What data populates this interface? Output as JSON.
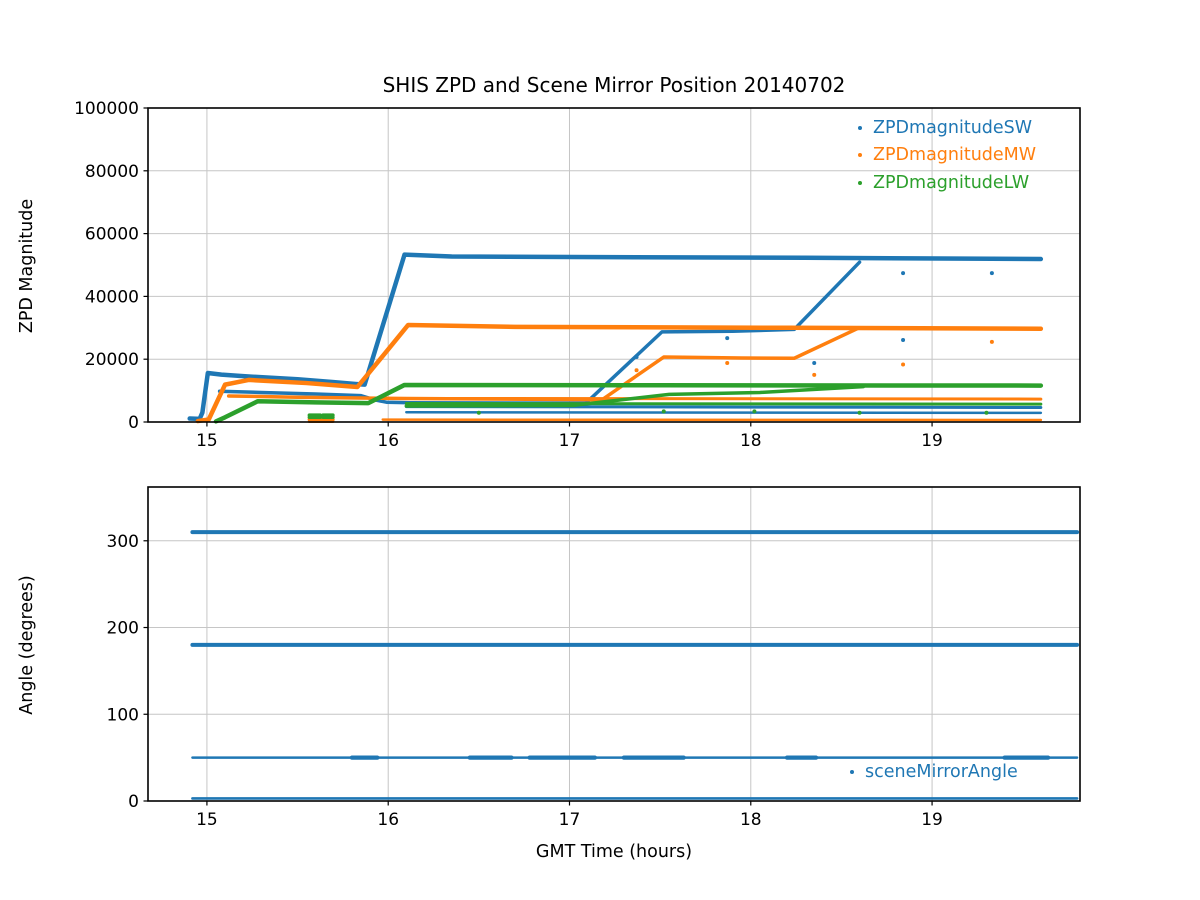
{
  "page": {
    "title": "SHIS ZPD and Scene Mirror Position 20140702"
  },
  "colors": {
    "blue": "#1f77b4",
    "orange": "#ff7f0e",
    "green": "#2ca02c",
    "grid": "#c6c6c6",
    "axis": "#000000"
  },
  "chart_data": [
    {
      "type": "scatter",
      "title": "SHIS ZPD and Scene Mirror Position 20140702",
      "ylabel": "ZPD Magnitude",
      "xlim": [
        14.675,
        19.816
      ],
      "ylim": [
        0,
        100000
      ],
      "grid": true,
      "xticks": [
        {
          "v": 15,
          "label": "15"
        },
        {
          "v": 16,
          "label": "16"
        },
        {
          "v": 17,
          "label": "17"
        },
        {
          "v": 18,
          "label": "18"
        },
        {
          "v": 19,
          "label": "19"
        }
      ],
      "yticks": [
        {
          "v": 0,
          "label": "0"
        },
        {
          "v": 20000,
          "label": "20000"
        },
        {
          "v": 40000,
          "label": "40000"
        },
        {
          "v": 60000,
          "label": "60000"
        },
        {
          "v": 80000,
          "label": "80000"
        },
        {
          "v": 100000,
          "label": "100000"
        }
      ],
      "legend": {
        "position": "upper right",
        "entries": [
          {
            "label": "ZPDmagnitudeSW",
            "color": "#1f77b4"
          },
          {
            "label": "ZPDmagnitudeMW",
            "color": "#ff7f0e"
          },
          {
            "label": "ZPDmagnitudeLW",
            "color": "#2ca02c"
          }
        ]
      },
      "series": [
        {
          "name": "ZPDmagnitudeSW",
          "part": "main",
          "color": "#1f77b4",
          "width": 4.5,
          "points": [
            [
              14.905,
              1100
            ],
            [
              14.96,
              1000
            ],
            [
              14.975,
              3000
            ],
            [
              15.005,
              15600
            ],
            [
              15.08,
              15100
            ],
            [
              15.2,
              14600
            ],
            [
              15.5,
              13600
            ],
            [
              15.7,
              12700
            ],
            [
              15.82,
              12100
            ],
            [
              15.87,
              11900
            ],
            [
              16.09,
              53300
            ],
            [
              16.35,
              52700
            ],
            [
              17.2,
              52500
            ],
            [
              18.3,
              52300
            ],
            [
              19.6,
              51900
            ]
          ]
        },
        {
          "name": "ZPDmagnitudeSW",
          "part": "strand2",
          "color": "#1f77b4",
          "width": 3.5,
          "points": [
            [
              15.07,
              9800
            ],
            [
              15.3,
              9400
            ],
            [
              15.6,
              8900
            ],
            [
              15.85,
              8400
            ],
            [
              15.93,
              7000
            ],
            [
              15.99,
              6300
            ],
            [
              16.12,
              6150
            ],
            [
              17.09,
              6000
            ],
            [
              17.51,
              28700
            ],
            [
              17.9,
              28900
            ],
            [
              18.24,
              29500
            ],
            [
              18.6,
              50900
            ]
          ]
        },
        {
          "name": "ZPDmagnitudeSW",
          "part": "strand3",
          "color": "#1f77b4",
          "width": 3,
          "points": [
            [
              16.1,
              4900
            ],
            [
              18.0,
              4750
            ],
            [
              19.6,
              4600
            ]
          ]
        },
        {
          "name": "ZPDmagnitudeSW",
          "part": "strand4",
          "color": "#1f77b4",
          "width": 2.5,
          "points": [
            [
              16.1,
              3100
            ],
            [
              19.6,
              2900
            ]
          ]
        },
        {
          "name": "ZPDmagnitudeMW",
          "part": "main",
          "color": "#ff7f0e",
          "width": 4.5,
          "points": [
            [
              14.95,
              300
            ],
            [
              15.01,
              800
            ],
            [
              15.1,
              11900
            ],
            [
              15.23,
              13400
            ],
            [
              15.55,
              12400
            ],
            [
              15.83,
              11150
            ],
            [
              16.11,
              30900
            ],
            [
              16.7,
              30300
            ],
            [
              18.2,
              30000
            ],
            [
              19.6,
              29700
            ]
          ]
        },
        {
          "name": "ZPDmagnitudeMW",
          "part": "strand2",
          "color": "#ff7f0e",
          "width": 3.5,
          "points": [
            [
              15.12,
              8300
            ],
            [
              15.5,
              7900
            ],
            [
              15.9,
              7600
            ],
            [
              16.1,
              7500
            ],
            [
              17.18,
              7100
            ],
            [
              17.52,
              20700
            ],
            [
              17.95,
              20400
            ],
            [
              18.24,
              20300
            ],
            [
              18.59,
              29800
            ]
          ]
        },
        {
          "name": "ZPDmagnitudeMW",
          "part": "strand3",
          "color": "#ff7f0e",
          "width": 3,
          "points": [
            [
              16.1,
              7500
            ],
            [
              19.6,
              7300
            ]
          ]
        },
        {
          "name": "ZPDmagnitudeMW",
          "part": "strand4-low",
          "color": "#ff7f0e",
          "width": 2.5,
          "points": [
            [
              15.97,
              750
            ],
            [
              19.6,
              650
            ]
          ]
        },
        {
          "name": "ZPDmagnitudeMW",
          "part": "dash",
          "color": "#ff7f0e",
          "width": 3.5,
          "points": [
            [
              15.565,
              800
            ],
            [
              15.625,
              800
            ]
          ]
        },
        {
          "name": "ZPDmagnitudeMW",
          "part": "dash",
          "color": "#ff7f0e",
          "width": 3.5,
          "points": [
            [
              15.64,
              800
            ],
            [
              15.695,
              800
            ]
          ]
        },
        {
          "name": "ZPDmagnitudeMW",
          "part": "dash",
          "color": "#ff7f0e",
          "width": 3,
          "points": [
            [
              15.565,
              150
            ],
            [
              15.695,
              150
            ]
          ]
        },
        {
          "name": "ZPDmagnitudeLW",
          "part": "main",
          "color": "#2ca02c",
          "width": 4.5,
          "points": [
            [
              15.05,
              200
            ],
            [
              15.1,
              1500
            ],
            [
              15.28,
              6600
            ],
            [
              15.6,
              6250
            ],
            [
              15.89,
              6000
            ],
            [
              16.09,
              11800
            ],
            [
              17.5,
              11700
            ],
            [
              19.6,
              11600
            ]
          ]
        },
        {
          "name": "ZPDmagnitudeLW",
          "part": "strand2",
          "color": "#2ca02c",
          "width": 3.5,
          "points": [
            [
              16.1,
              5100
            ],
            [
              17.02,
              5300
            ],
            [
              17.55,
              8800
            ],
            [
              18.05,
              9400
            ],
            [
              18.62,
              11250
            ]
          ]
        },
        {
          "name": "ZPDmagnitudeLW",
          "part": "strand3",
          "color": "#2ca02c",
          "width": 3,
          "points": [
            [
              16.1,
              5900
            ],
            [
              19.6,
              5700
            ]
          ]
        },
        {
          "name": "ZPDmagnitudeLW",
          "part": "dash",
          "color": "#2ca02c",
          "width": 3.5,
          "points": [
            [
              15.565,
              2200
            ],
            [
              15.625,
              2200
            ]
          ]
        },
        {
          "name": "ZPDmagnitudeLW",
          "part": "dash",
          "color": "#2ca02c",
          "width": 3.5,
          "points": [
            [
              15.64,
              2200
            ],
            [
              15.695,
              2200
            ]
          ]
        },
        {
          "name": "ZPDmagnitudeLW",
          "part": "dash",
          "color": "#2ca02c",
          "width": 3.5,
          "points": [
            [
              15.565,
              1500
            ],
            [
              15.625,
              1500
            ]
          ]
        },
        {
          "name": "ZPDmagnitudeLW",
          "part": "dash",
          "color": "#2ca02c",
          "width": 3.5,
          "points": [
            [
              15.64,
              1500
            ],
            [
              15.695,
              1500
            ]
          ]
        }
      ],
      "dots": [
        {
          "name": "ZPDmagnitudeSW-outliers",
          "color": "#1f77b4",
          "r": 2,
          "points": [
            [
              17.37,
              20700
            ],
            [
              17.87,
              26700
            ],
            [
              18.35,
              18800
            ],
            [
              18.84,
              26100
            ],
            [
              18.84,
              47400
            ],
            [
              19.33,
              47400
            ]
          ]
        },
        {
          "name": "ZPDmagnitudeMW-outliers",
          "color": "#ff7f0e",
          "r": 2,
          "points": [
            [
              17.37,
              16500
            ],
            [
              17.87,
              18800
            ],
            [
              18.35,
              15000
            ],
            [
              18.84,
              18300
            ],
            [
              19.33,
              25500
            ]
          ]
        },
        {
          "name": "ZPDmagnitudeLW-outliers",
          "color": "#2ca02c",
          "r": 2,
          "points": [
            [
              17.52,
              3400
            ],
            [
              18.02,
              3400
            ],
            [
              16.5,
              2950
            ],
            [
              18.6,
              2950
            ],
            [
              19.3,
              2950
            ]
          ]
        }
      ]
    },
    {
      "type": "scatter",
      "ylabel": "Angle (degrees)",
      "xlabel": "GMT Time (hours)",
      "xlim": [
        14.675,
        19.816
      ],
      "ylim": [
        0,
        362
      ],
      "grid": true,
      "xticks": [
        {
          "v": 15,
          "label": "15"
        },
        {
          "v": 16,
          "label": "16"
        },
        {
          "v": 17,
          "label": "17"
        },
        {
          "v": 18,
          "label": "18"
        },
        {
          "v": 19,
          "label": "19"
        }
      ],
      "yticks": [
        {
          "v": 0,
          "label": "0"
        },
        {
          "v": 100,
          "label": "100"
        },
        {
          "v": 200,
          "label": "200"
        },
        {
          "v": 300,
          "label": "300"
        }
      ],
      "legend": {
        "position": "lower right",
        "entries": [
          {
            "label": "sceneMirrorAngle",
            "color": "#1f77b4"
          }
        ]
      },
      "series": [
        {
          "name": "sceneMirrorAngle",
          "part": "310-deg",
          "color": "#1f77b4",
          "width": 4,
          "points": [
            [
              14.92,
              310
            ],
            [
              19.8,
              310
            ]
          ]
        },
        {
          "name": "sceneMirrorAngle",
          "part": "180-deg",
          "color": "#1f77b4",
          "width": 4,
          "points": [
            [
              14.92,
              180
            ],
            [
              19.8,
              180
            ]
          ]
        },
        {
          "name": "sceneMirrorAngle",
          "part": "50-deg",
          "color": "#1f77b4",
          "width": 2.4,
          "points": [
            [
              14.92,
              50
            ],
            [
              19.8,
              50
            ]
          ]
        },
        {
          "name": "sceneMirrorAngle",
          "part": "50-deg-cluster",
          "color": "#1f77b4",
          "width": 4.2,
          "points": [
            [
              15.8,
              50
            ],
            [
              15.94,
              50
            ]
          ]
        },
        {
          "name": "sceneMirrorAngle",
          "part": "50-deg-cluster",
          "color": "#1f77b4",
          "width": 4.2,
          "points": [
            [
              16.45,
              50
            ],
            [
              16.68,
              50
            ]
          ]
        },
        {
          "name": "sceneMirrorAngle",
          "part": "50-deg-cluster",
          "color": "#1f77b4",
          "width": 4.2,
          "points": [
            [
              16.78,
              50
            ],
            [
              17.14,
              50
            ]
          ]
        },
        {
          "name": "sceneMirrorAngle",
          "part": "50-deg-cluster",
          "color": "#1f77b4",
          "width": 4.2,
          "points": [
            [
              17.3,
              50
            ],
            [
              17.63,
              50
            ]
          ]
        },
        {
          "name": "sceneMirrorAngle",
          "part": "50-deg-cluster",
          "color": "#1f77b4",
          "width": 4.2,
          "points": [
            [
              18.2,
              50
            ],
            [
              18.36,
              50
            ]
          ]
        },
        {
          "name": "sceneMirrorAngle",
          "part": "50-deg-cluster",
          "color": "#1f77b4",
          "width": 4.2,
          "points": [
            [
              19.4,
              50
            ],
            [
              19.64,
              50
            ]
          ]
        },
        {
          "name": "sceneMirrorAngle",
          "part": "0-deg",
          "color": "#1f77b4",
          "width": 2.6,
          "points": [
            [
              14.92,
              3
            ],
            [
              19.8,
              3
            ]
          ]
        }
      ],
      "dots": []
    }
  ]
}
